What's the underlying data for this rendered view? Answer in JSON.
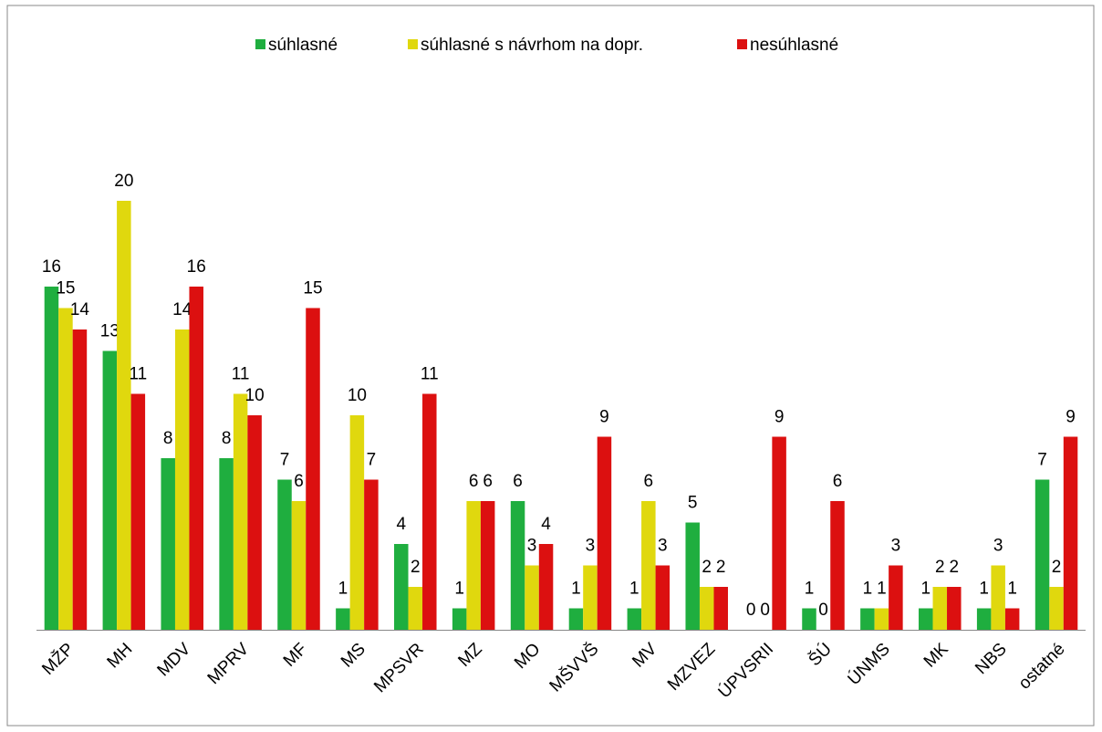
{
  "chart_data": {
    "type": "bar",
    "categories": [
      "MŽP",
      "MH",
      "MDV",
      "MPRV",
      "MF",
      "MS",
      "MPSVR",
      "MZ",
      "MO",
      "MŠVVŠ",
      "MV",
      "MZVEZ",
      "ÚPVSRII",
      "ŠÚ",
      "ÚNMS",
      "MK",
      "NBS",
      "ostatné"
    ],
    "series": [
      {
        "name": "súhlasné",
        "color": "#1fae3f",
        "values": [
          16,
          13,
          8,
          8,
          7,
          1,
          4,
          1,
          6,
          1,
          1,
          5,
          0,
          1,
          1,
          1,
          1,
          7
        ]
      },
      {
        "name": "súhlasné s návrhom na dopr.",
        "color": "#e0d80e",
        "values": [
          15,
          20,
          14,
          11,
          6,
          10,
          2,
          6,
          3,
          3,
          6,
          2,
          0,
          0,
          1,
          2,
          3,
          2
        ]
      },
      {
        "name": "nesúhlasné",
        "color": "#dc1010",
        "values": [
          14,
          11,
          16,
          10,
          15,
          7,
          11,
          6,
          4,
          9,
          3,
          2,
          9,
          6,
          3,
          2,
          1,
          9
        ]
      }
    ],
    "ylim": [
      0,
      20
    ],
    "legend": "top"
  }
}
